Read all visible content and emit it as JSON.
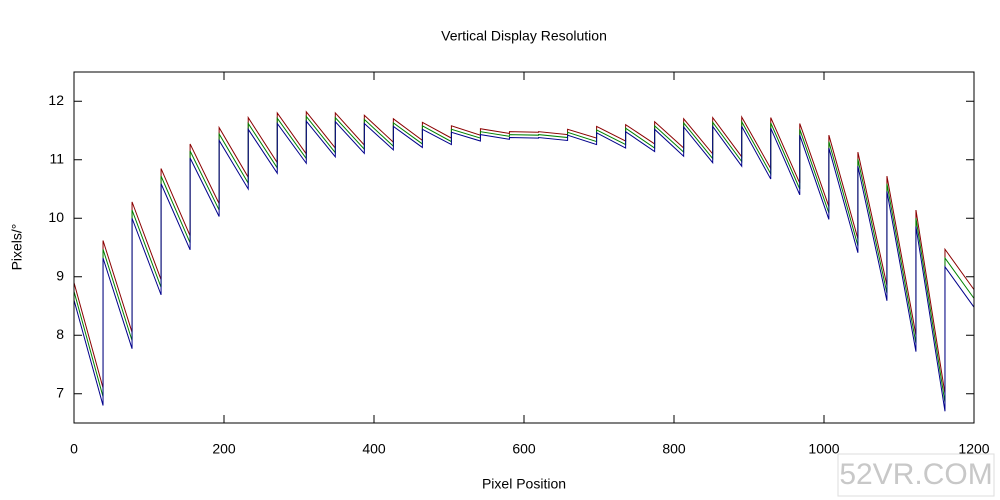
{
  "chart_data": {
    "type": "line",
    "title": "Vertical Display Resolution",
    "x_label": "Pixel Position",
    "y_label": "Pixels/°",
    "x": [
      0,
      38.7,
      38.7,
      77.4,
      77.4,
      116.1,
      116.1,
      154.8,
      154.8,
      193.5,
      193.5,
      232.3,
      232.3,
      271,
      271,
      309.7,
      309.7,
      348.4,
      348.4,
      387.1,
      387.1,
      425.8,
      425.8,
      464.5,
      464.5,
      503.2,
      503.2,
      541.9,
      541.9,
      580.6,
      580.6,
      619.4,
      619.4,
      658.1,
      658.1,
      696.8,
      696.8,
      735.5,
      735.5,
      774.2,
      774.2,
      812.9,
      812.9,
      851.6,
      851.6,
      890.3,
      890.3,
      929,
      929,
      967.7,
      967.7,
      1006.5,
      1006.5,
      1045.2,
      1045.2,
      1083.9,
      1083.9,
      1122.6,
      1122.6,
      1161.3,
      1161.3,
      1200
    ],
    "series": [
      {
        "color": "#8b0000",
        "values": [
          8.9,
          7.1,
          9.62,
          8.05,
          10.28,
          8.95,
          10.85,
          9.7,
          11.27,
          10.25,
          11.55,
          10.7,
          11.72,
          10.95,
          11.8,
          11.1,
          11.82,
          11.2,
          11.8,
          11.25,
          11.76,
          11.3,
          11.7,
          11.33,
          11.64,
          11.37,
          11.58,
          11.42,
          11.53,
          11.45,
          11.48,
          11.47,
          11.48,
          11.43,
          11.52,
          11.37,
          11.57,
          11.32,
          11.6,
          11.27,
          11.65,
          11.2,
          11.7,
          11.1,
          11.72,
          11.05,
          11.73,
          10.85,
          11.72,
          10.6,
          11.62,
          10.2,
          11.42,
          9.65,
          11.13,
          8.85,
          10.72,
          8.0,
          10.14,
          7.0,
          9.47,
          8.78
        ]
      },
      {
        "color": "#008000",
        "values": [
          8.75,
          6.95,
          9.47,
          7.91,
          10.14,
          8.82,
          10.72,
          9.58,
          11.15,
          10.14,
          11.44,
          10.6,
          11.62,
          10.86,
          11.71,
          11.02,
          11.74,
          11.12,
          11.72,
          11.18,
          11.69,
          11.23,
          11.63,
          11.27,
          11.58,
          11.31,
          11.52,
          11.37,
          11.48,
          11.4,
          11.43,
          11.42,
          11.43,
          11.38,
          11.47,
          11.31,
          11.51,
          11.26,
          11.54,
          11.2,
          11.58,
          11.13,
          11.63,
          11.02,
          11.64,
          10.97,
          11.65,
          10.76,
          11.63,
          10.5,
          11.52,
          10.09,
          11.31,
          9.53,
          11.01,
          8.72,
          10.59,
          7.86,
          10.0,
          6.85,
          9.32,
          8.63
        ]
      },
      {
        "color": "#00008b",
        "values": [
          8.6,
          6.8,
          9.32,
          7.77,
          10.0,
          8.69,
          10.59,
          9.46,
          11.03,
          10.03,
          11.33,
          10.5,
          11.52,
          10.77,
          11.62,
          10.94,
          11.66,
          11.05,
          11.65,
          11.11,
          11.62,
          11.17,
          11.57,
          11.21,
          11.52,
          11.26,
          11.47,
          11.32,
          11.43,
          11.35,
          11.38,
          11.37,
          11.38,
          11.33,
          11.42,
          11.26,
          11.46,
          11.2,
          11.48,
          11.14,
          11.52,
          11.06,
          11.56,
          10.95,
          11.57,
          10.89,
          11.57,
          10.67,
          11.54,
          10.4,
          11.42,
          9.98,
          11.2,
          9.41,
          10.89,
          8.59,
          10.46,
          7.72,
          9.86,
          6.7,
          9.17,
          8.48
        ]
      }
    ],
    "xlim": [
      0,
      1200
    ],
    "xticks": [
      0,
      200,
      400,
      600,
      800,
      1000,
      1200
    ],
    "ylim": [
      6.5,
      12.5
    ],
    "yticks": [
      7,
      8,
      9,
      10,
      11,
      12
    ],
    "grid": false,
    "watermark": "52VR.COM"
  }
}
